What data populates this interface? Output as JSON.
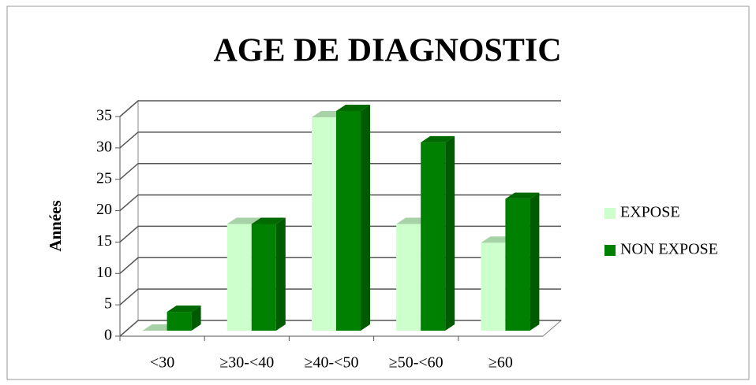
{
  "chart_data": {
    "type": "bar3d",
    "title": "AGE DE DIAGNOSTIC",
    "y_label": "Années",
    "categories": [
      "<30",
      "≥30-<40",
      "≥40-<50",
      "≥50-<60",
      "≥60"
    ],
    "series": [
      {
        "name": "EXPOSE",
        "color": "#ccffcc",
        "values": [
          0,
          17,
          34,
          17,
          14
        ]
      },
      {
        "name": "NON EXPOSE",
        "color": "#008000",
        "values": [
          3,
          17,
          35,
          30,
          21
        ]
      }
    ],
    "ylim": [
      0,
      35
    ],
    "yticks": [
      0,
      5,
      10,
      15,
      20,
      25,
      30,
      35
    ],
    "grid": true,
    "legend": "right"
  }
}
